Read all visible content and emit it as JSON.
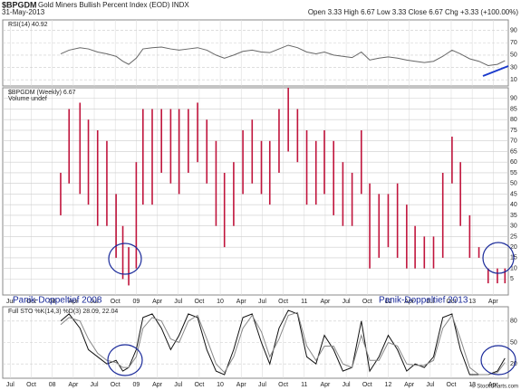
{
  "header": {
    "symbol": "$BPGDM",
    "name": "Gold Miners Bullish Percent Index (EOD) INDX",
    "date": "31-May-2013",
    "quote": "Open 3.33 High 6.67 Low 3.33 Close 6.67 Chg +3.33 (+100.00%)",
    "source": "© StockCharts.com"
  },
  "chart_data": [
    {
      "type": "line",
      "title": "RSI(14) 40.92",
      "ylim": [
        0,
        107
      ],
      "yticks": [
        10,
        30,
        50,
        70,
        90
      ],
      "x": [
        2008.1,
        2008.2,
        2008.33,
        2008.43,
        2008.54,
        2008.65,
        2008.76,
        2008.84,
        2008.91,
        2009.0,
        2009.08,
        2009.19,
        2009.3,
        2009.41,
        2009.51,
        2009.62,
        2009.73,
        2009.84,
        2009.95,
        2010.05,
        2010.16,
        2010.27,
        2010.38,
        2010.49,
        2010.59,
        2010.7,
        2010.81,
        2010.92,
        2011.03,
        2011.14,
        2011.24,
        2011.35,
        2011.46,
        2011.57,
        2011.68,
        2011.78,
        2011.89,
        2012.0,
        2012.11,
        2012.22,
        2012.32,
        2012.43,
        2012.54,
        2012.65,
        2012.76,
        2012.86,
        2012.97,
        2013.08,
        2013.19,
        2013.3,
        2013.39
      ],
      "series": [
        {
          "color": "#666666",
          "values": [
            52,
            58,
            62,
            60,
            55,
            52,
            48,
            40,
            35,
            45,
            60,
            62,
            63,
            60,
            58,
            60,
            62,
            58,
            50,
            45,
            50,
            56,
            58,
            55,
            54,
            60,
            66,
            62,
            55,
            52,
            55,
            50,
            48,
            46,
            55,
            42,
            45,
            47,
            45,
            42,
            40,
            38,
            40,
            48,
            58,
            52,
            44,
            40,
            33,
            35,
            41
          ]
        }
      ]
    },
    {
      "type": "hilo",
      "title": "$BPGDM (Weekly) 6.67",
      "subtitle": "Volume undef",
      "color": "#c0143c",
      "xlim": [
        2007.41,
        2013.43
      ],
      "ylim": [
        -2.5,
        95
      ],
      "yticks": [
        5,
        10,
        15,
        20,
        25,
        30,
        35,
        40,
        45,
        50,
        55,
        60,
        65,
        70,
        75,
        80,
        85,
        90
      ],
      "xticks": [
        {
          "value": 2007.5,
          "label": "Jul"
        },
        {
          "value": 2007.75,
          "label": "Oct"
        },
        {
          "value": 2008,
          "label": "08"
        },
        {
          "value": 2008.25,
          "label": "Apr"
        },
        {
          "value": 2008.5,
          "label": "Jul"
        },
        {
          "value": 2008.75,
          "label": "Oct"
        },
        {
          "value": 2009,
          "label": "09"
        },
        {
          "value": 2009.25,
          "label": "Apr"
        },
        {
          "value": 2009.5,
          "label": "Jul"
        },
        {
          "value": 2009.75,
          "label": "Oct"
        },
        {
          "value": 2010,
          "label": "10"
        },
        {
          "value": 2010.25,
          "label": "Apr"
        },
        {
          "value": 2010.5,
          "label": "Jul"
        },
        {
          "value": 2010.75,
          "label": "Oct"
        },
        {
          "value": 2011,
          "label": "11"
        },
        {
          "value": 2011.25,
          "label": "Apr"
        },
        {
          "value": 2011.5,
          "label": "Jul"
        },
        {
          "value": 2011.75,
          "label": "Oct"
        },
        {
          "value": 2012,
          "label": "12"
        },
        {
          "value": 2012.25,
          "label": "Apr"
        },
        {
          "value": 2012.5,
          "label": "Jul"
        },
        {
          "value": 2012.75,
          "label": "Oct"
        },
        {
          "value": 2013,
          "label": "13"
        },
        {
          "value": 2013.25,
          "label": "Apr"
        }
      ],
      "annotations": [
        "Panik-Doppeltief 2008",
        "Panik-Doppeltief 2013"
      ],
      "x": [
        2008.1,
        2008.2,
        2008.33,
        2008.43,
        2008.54,
        2008.65,
        2008.76,
        2008.84,
        2008.91,
        2009.0,
        2009.08,
        2009.19,
        2009.3,
        2009.41,
        2009.51,
        2009.62,
        2009.73,
        2009.84,
        2009.95,
        2010.05,
        2010.16,
        2010.27,
        2010.38,
        2010.49,
        2010.59,
        2010.7,
        2010.81,
        2010.92,
        2011.03,
        2011.14,
        2011.24,
        2011.35,
        2011.46,
        2011.57,
        2011.68,
        2011.78,
        2011.89,
        2012.0,
        2012.11,
        2012.22,
        2012.32,
        2012.43,
        2012.54,
        2012.65,
        2012.76,
        2012.86,
        2012.97,
        2013.08,
        2013.19,
        2013.3,
        2013.39
      ],
      "low": [
        35,
        50,
        45,
        40,
        30,
        30,
        15,
        5,
        2,
        10,
        40,
        40,
        55,
        50,
        45,
        55,
        60,
        50,
        30,
        20,
        30,
        45,
        50,
        45,
        40,
        55,
        65,
        60,
        40,
        40,
        45,
        35,
        30,
        30,
        45,
        10,
        15,
        20,
        15,
        10,
        10,
        10,
        10,
        15,
        50,
        30,
        15,
        15,
        3,
        3,
        3
      ],
      "high": [
        55,
        85,
        88,
        80,
        75,
        70,
        45,
        30,
        20,
        60,
        85,
        85,
        85,
        85,
        85,
        85,
        88,
        80,
        70,
        55,
        60,
        75,
        80,
        70,
        70,
        85,
        95,
        85,
        75,
        70,
        75,
        70,
        60,
        55,
        75,
        50,
        45,
        45,
        50,
        40,
        30,
        25,
        25,
        55,
        72,
        60,
        35,
        20,
        10,
        10,
        10
      ]
    },
    {
      "type": "line",
      "title": "Full STO %K(14,3) %D(3) 28.09, 22.04",
      "ylim": [
        0,
        100
      ],
      "yticks": [
        20,
        50,
        80
      ],
      "xticks": [
        {
          "value": 2007.5,
          "label": "Jul"
        },
        {
          "value": 2007.75,
          "label": "Oct"
        },
        {
          "value": 2008,
          "label": "08"
        },
        {
          "value": 2008.25,
          "label": "Apr"
        },
        {
          "value": 2008.5,
          "label": "Jul"
        },
        {
          "value": 2008.75,
          "label": "Oct"
        },
        {
          "value": 2009,
          "label": "09"
        },
        {
          "value": 2009.25,
          "label": "Apr"
        },
        {
          "value": 2009.5,
          "label": "Jul"
        },
        {
          "value": 2009.75,
          "label": "Oct"
        },
        {
          "value": 2010,
          "label": "10"
        },
        {
          "value": 2010.25,
          "label": "Apr"
        },
        {
          "value": 2010.5,
          "label": "Jul"
        },
        {
          "value": 2010.75,
          "label": "Oct"
        },
        {
          "value": 2011,
          "label": "11"
        },
        {
          "value": 2011.25,
          "label": "Apr"
        },
        {
          "value": 2011.5,
          "label": "Jul"
        },
        {
          "value": 2011.75,
          "label": "Oct"
        },
        {
          "value": 2012,
          "label": "12"
        },
        {
          "value": 2012.25,
          "label": "Apr"
        },
        {
          "value": 2012.5,
          "label": "Jul"
        },
        {
          "value": 2012.75,
          "label": "Oct"
        },
        {
          "value": 2013,
          "label": "13"
        },
        {
          "value": 2013.25,
          "label": "Apr"
        }
      ],
      "x": [
        2008.1,
        2008.2,
        2008.33,
        2008.43,
        2008.54,
        2008.65,
        2008.76,
        2008.84,
        2008.91,
        2009.0,
        2009.08,
        2009.19,
        2009.3,
        2009.41,
        2009.51,
        2009.62,
        2009.73,
        2009.84,
        2009.95,
        2010.05,
        2010.16,
        2010.27,
        2010.38,
        2010.49,
        2010.59,
        2010.7,
        2010.81,
        2010.92,
        2011.03,
        2011.14,
        2011.24,
        2011.35,
        2011.46,
        2011.57,
        2011.68,
        2011.78,
        2011.89,
        2012.0,
        2012.11,
        2012.22,
        2012.32,
        2012.43,
        2012.54,
        2012.65,
        2012.76,
        2012.86,
        2012.97,
        2013.08,
        2013.19,
        2013.3,
        2013.39
      ],
      "series": [
        {
          "color": "#111111",
          "values": [
            80,
            90,
            70,
            40,
            30,
            20,
            25,
            10,
            15,
            40,
            85,
            90,
            70,
            40,
            60,
            90,
            85,
            40,
            10,
            5,
            40,
            85,
            90,
            50,
            20,
            70,
            95,
            90,
            30,
            20,
            60,
            40,
            10,
            15,
            80,
            10,
            30,
            60,
            40,
            10,
            20,
            15,
            30,
            85,
            90,
            40,
            5,
            5,
            5,
            10,
            28
          ]
        },
        {
          "color": "#888888",
          "values": [
            75,
            85,
            80,
            55,
            35,
            25,
            22,
            15,
            15,
            30,
            70,
            85,
            80,
            55,
            50,
            80,
            88,
            55,
            20,
            8,
            30,
            70,
            88,
            65,
            30,
            55,
            88,
            92,
            45,
            25,
            45,
            45,
            20,
            15,
            60,
            25,
            25,
            50,
            45,
            20,
            18,
            18,
            25,
            70,
            88,
            55,
            15,
            5,
            5,
            8,
            22
          ]
        }
      ]
    }
  ]
}
